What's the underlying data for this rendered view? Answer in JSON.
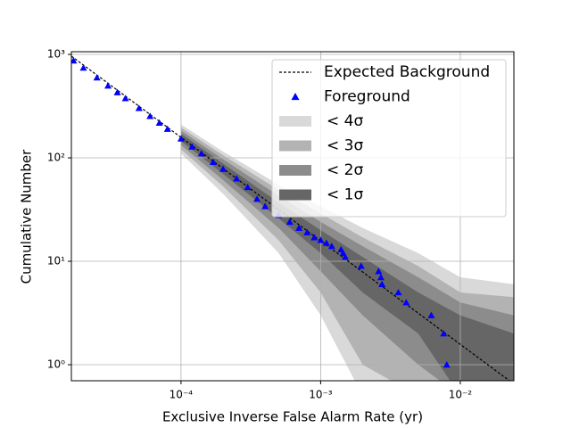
{
  "chart_data": {
    "type": "line",
    "xlabel": "Exclusive Inverse False Alarm Rate (yr)",
    "ylabel": "Cumulative Number",
    "xscale": "log",
    "yscale": "log",
    "grid": true,
    "legend": "upper right",
    "xlim": [
      1.64e-05,
      0.0242
    ],
    "ylim": [
      0.7,
      1062
    ],
    "xticks": [
      {
        "value": 0.0001,
        "label": "10⁻⁴"
      },
      {
        "value": 0.001,
        "label": "10⁻³"
      },
      {
        "value": 0.01,
        "label": "10⁻²"
      }
    ],
    "yticks": [
      {
        "value": 1,
        "label": "10⁰"
      },
      {
        "value": 10,
        "label": "10¹"
      },
      {
        "value": 100,
        "label": "10²"
      },
      {
        "value": 1000,
        "label": "10³"
      }
    ],
    "series": [
      {
        "name": "Expected Background",
        "color": "#000000",
        "dashed": true,
        "x": [
          1.64e-05,
          0.0242
        ],
        "values": [
          963,
          0.65
        ]
      },
      {
        "name": "Foreground",
        "color": "#0000ff",
        "marker": "triangle",
        "x": [
          1.7e-05,
          2e-05,
          2.5e-05,
          3e-05,
          3.5e-05,
          4e-05,
          5e-05,
          6e-05,
          7e-05,
          8e-05,
          0.0001,
          0.00012,
          0.00014,
          0.00017,
          0.0002,
          0.00025,
          0.0003,
          0.00035,
          0.0004,
          0.0005,
          0.0006,
          0.0007,
          0.0008,
          0.0009,
          0.001,
          0.0011,
          0.0012,
          0.0014,
          0.00145,
          0.0015,
          0.00195,
          0.0026,
          0.0027,
          0.00275,
          0.0036,
          0.0041,
          0.0062,
          0.0076,
          0.008
        ],
        "values": [
          870,
          742,
          596,
          498,
          429,
          376,
          302,
          253,
          218,
          190,
          153,
          128,
          110,
          91,
          78,
          63,
          52,
          40,
          34,
          28,
          24,
          21,
          19,
          17,
          16,
          15,
          14,
          13,
          12,
          11,
          9,
          8,
          7,
          6,
          5,
          4,
          3,
          2,
          1
        ]
      }
    ],
    "band_x": [
      0.0001,
      0.0002,
      0.0005,
      0.001,
      0.002,
      0.005,
      0.01,
      0.0242
    ],
    "bands": [
      {
        "name": "< 4σ",
        "color": "#d9d9d9",
        "lower": [
          110,
          45,
          12,
          3,
          0.5,
          0.5,
          0.5,
          0.5
        ],
        "upper": [
          210,
          115,
          55,
          34,
          21,
          12,
          7,
          6
        ]
      },
      {
        "name": "< 3σ",
        "color": "#b3b3b3",
        "lower": [
          121,
          53,
          16,
          5,
          1,
          0.5,
          0.5,
          0.5
        ],
        "upper": [
          196,
          106,
          49,
          29,
          17,
          9,
          5,
          4.5
        ]
      },
      {
        "name": "< 2σ",
        "color": "#8c8c8c",
        "lower": [
          133,
          61,
          21,
          8,
          3,
          1,
          0.5,
          0.5
        ],
        "upper": [
          183,
          97,
          43,
          24,
          14,
          7,
          4,
          3
        ]
      },
      {
        "name": "< 1σ",
        "color": "#666666",
        "lower": [
          145,
          70,
          26,
          12,
          5,
          2,
          0.5,
          0.5
        ],
        "upper": [
          171,
          88,
          37,
          20,
          11,
          5,
          3,
          2
        ]
      }
    ]
  }
}
